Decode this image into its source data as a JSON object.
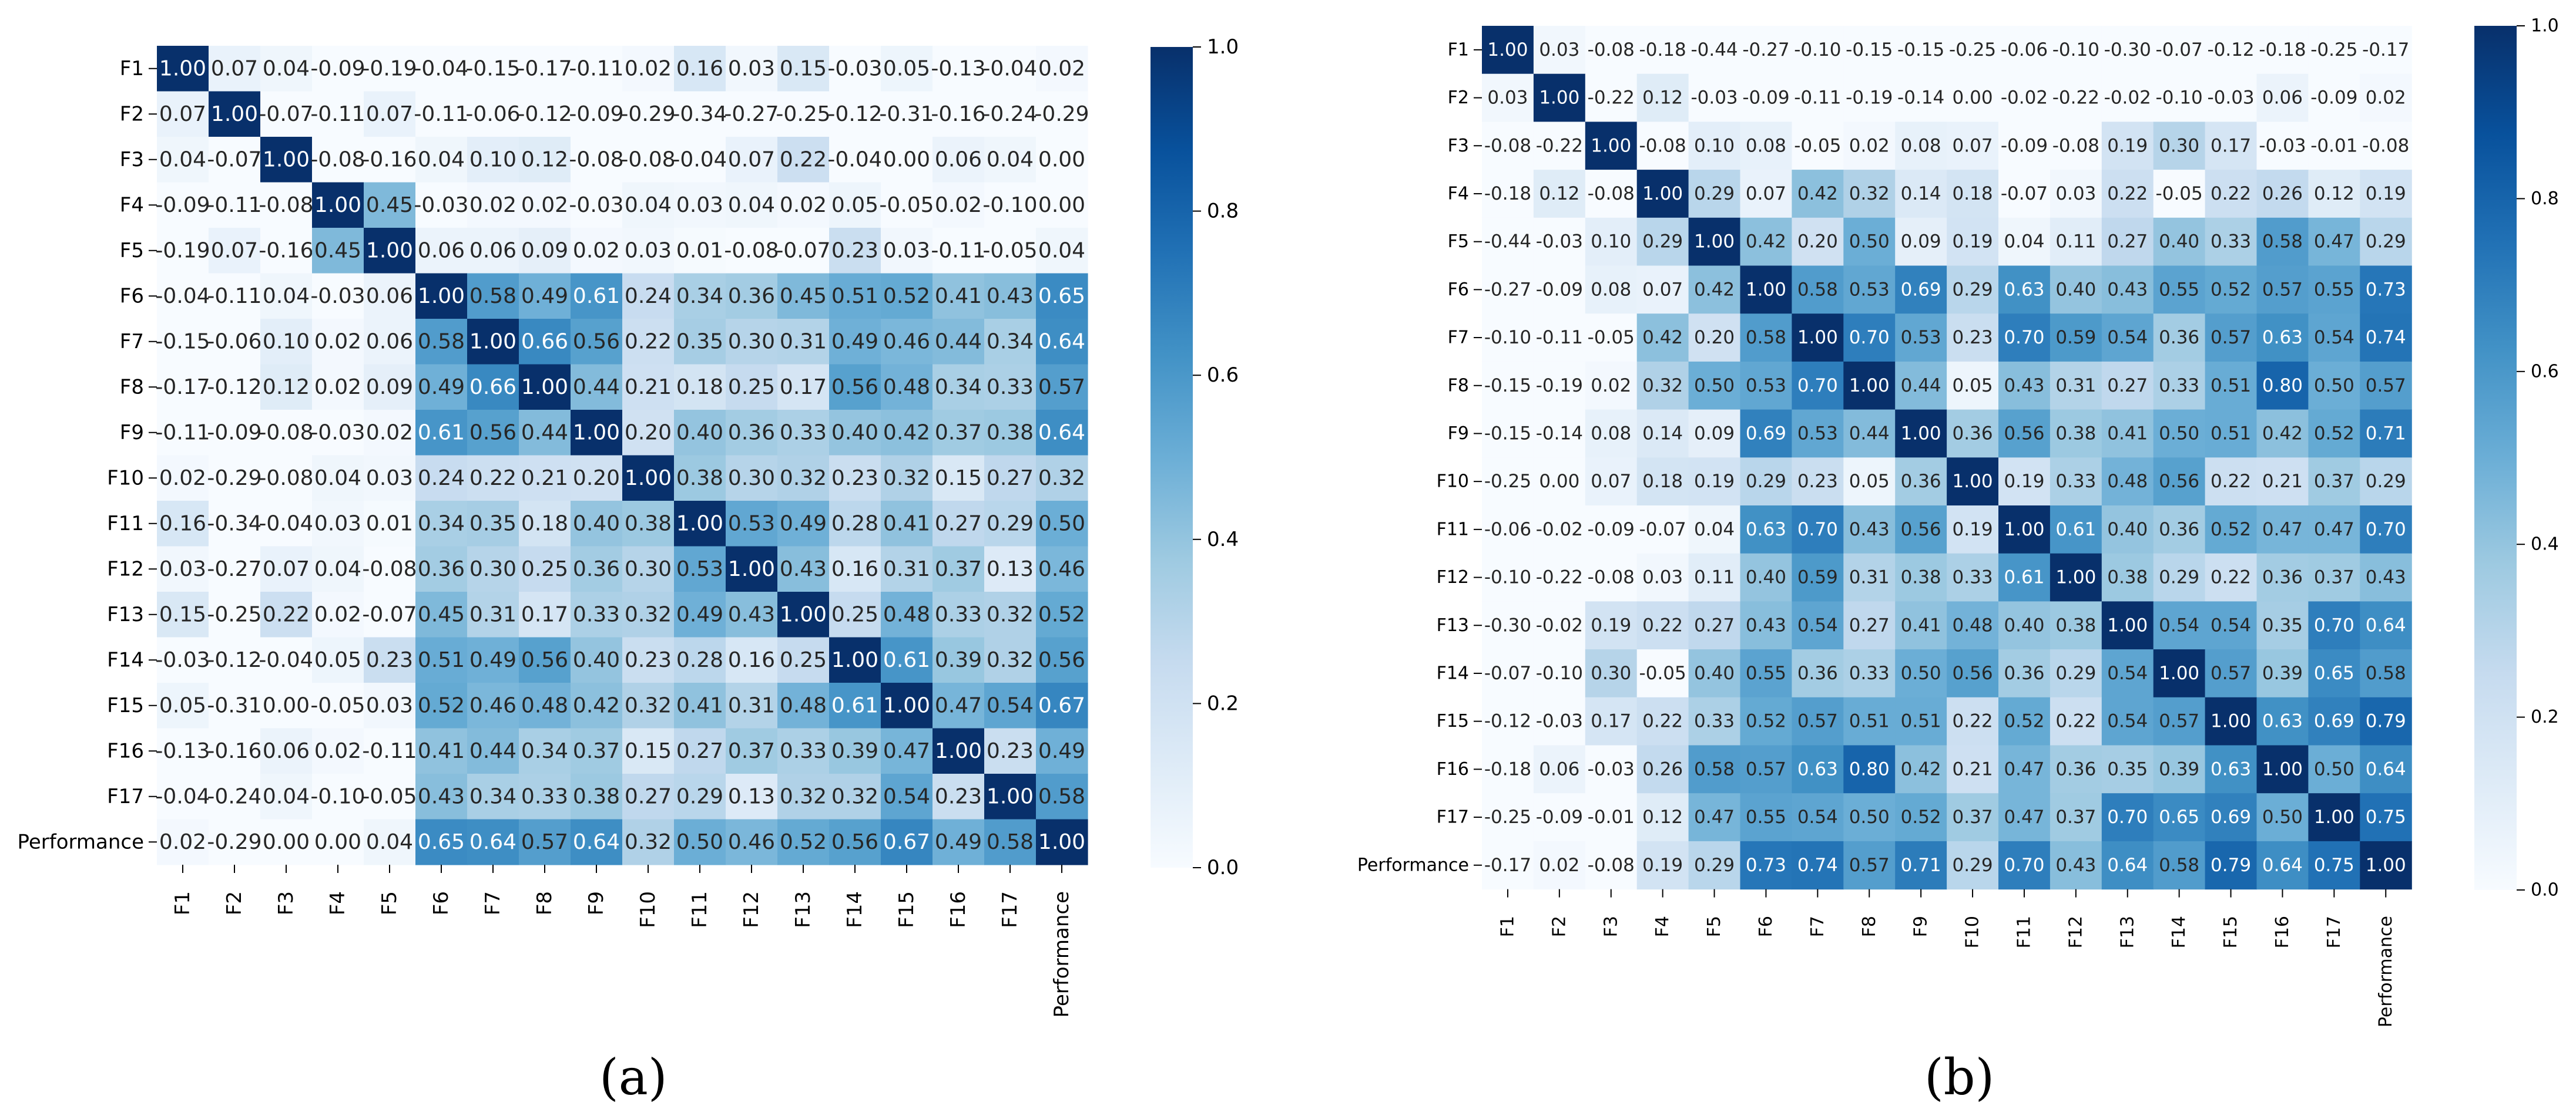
{
  "panels": [
    {
      "label": "(a)"
    },
    {
      "label": "(b)"
    }
  ],
  "chart_data": [
    {
      "type": "heatmap",
      "title": "",
      "labels": [
        "F1",
        "F2",
        "F3",
        "F4",
        "F5",
        "F6",
        "F7",
        "F8",
        "F9",
        "F10",
        "F11",
        "F12",
        "F13",
        "F14",
        "F15",
        "F16",
        "F17",
        "Performance"
      ],
      "colormap": "Blues",
      "vmin": 0.0,
      "vmax": 1.0,
      "colorbar_ticks": [
        "0.0",
        "0.2",
        "0.4",
        "0.6",
        "0.8",
        "1.0"
      ],
      "matrix": [
        [
          1.0,
          0.07,
          0.04,
          -0.09,
          -0.19,
          -0.04,
          -0.15,
          -0.17,
          -0.11,
          0.02,
          0.16,
          0.03,
          0.15,
          -0.03,
          0.05,
          -0.13,
          -0.04,
          0.02
        ],
        [
          0.07,
          1.0,
          -0.07,
          -0.11,
          0.07,
          -0.11,
          -0.06,
          -0.12,
          -0.09,
          -0.29,
          -0.34,
          -0.27,
          -0.25,
          -0.12,
          -0.31,
          -0.16,
          -0.24,
          -0.29
        ],
        [
          0.04,
          -0.07,
          1.0,
          -0.08,
          -0.16,
          0.04,
          0.1,
          0.12,
          -0.08,
          -0.08,
          -0.04,
          0.07,
          0.22,
          -0.04,
          -0.0,
          0.06,
          0.04,
          -0.0
        ],
        [
          -0.09,
          -0.11,
          -0.08,
          1.0,
          0.45,
          -0.03,
          0.02,
          0.02,
          -0.03,
          0.04,
          0.03,
          0.04,
          0.02,
          0.05,
          -0.05,
          0.02,
          -0.1,
          0.0
        ],
        [
          -0.19,
          0.07,
          -0.16,
          0.45,
          1.0,
          0.06,
          0.06,
          0.09,
          0.02,
          0.03,
          0.01,
          -0.08,
          -0.07,
          0.23,
          0.03,
          -0.11,
          -0.05,
          0.04
        ],
        [
          -0.04,
          -0.11,
          0.04,
          -0.03,
          0.06,
          1.0,
          0.58,
          0.49,
          0.61,
          0.24,
          0.34,
          0.36,
          0.45,
          0.51,
          0.52,
          0.41,
          0.43,
          0.65
        ],
        [
          -0.15,
          -0.06,
          0.1,
          0.02,
          0.06,
          0.58,
          1.0,
          0.66,
          0.56,
          0.22,
          0.35,
          0.3,
          0.31,
          0.49,
          0.46,
          0.44,
          0.34,
          0.64
        ],
        [
          -0.17,
          -0.12,
          0.12,
          0.02,
          0.09,
          0.49,
          0.66,
          1.0,
          0.44,
          0.21,
          0.18,
          0.25,
          0.17,
          0.56,
          0.48,
          0.34,
          0.33,
          0.57
        ],
        [
          -0.11,
          -0.09,
          -0.08,
          -0.03,
          0.02,
          0.61,
          0.56,
          0.44,
          1.0,
          0.2,
          0.4,
          0.36,
          0.33,
          0.4,
          0.42,
          0.37,
          0.38,
          0.64
        ],
        [
          0.02,
          -0.29,
          -0.08,
          0.04,
          0.03,
          0.24,
          0.22,
          0.21,
          0.2,
          1.0,
          0.38,
          0.3,
          0.32,
          0.23,
          0.32,
          0.15,
          0.27,
          0.32
        ],
        [
          0.16,
          -0.34,
          -0.04,
          0.03,
          0.01,
          0.34,
          0.35,
          0.18,
          0.4,
          0.38,
          1.0,
          0.53,
          0.49,
          0.28,
          0.41,
          0.27,
          0.29,
          0.5
        ],
        [
          0.03,
          -0.27,
          0.07,
          0.04,
          -0.08,
          0.36,
          0.3,
          0.25,
          0.36,
          0.3,
          0.53,
          1.0,
          0.43,
          0.16,
          0.31,
          0.37,
          0.13,
          0.46
        ],
        [
          0.15,
          -0.25,
          0.22,
          0.02,
          -0.07,
          0.45,
          0.31,
          0.17,
          0.33,
          0.32,
          0.49,
          0.43,
          1.0,
          0.25,
          0.48,
          0.33,
          0.32,
          0.52
        ],
        [
          -0.03,
          -0.12,
          -0.04,
          0.05,
          0.23,
          0.51,
          0.49,
          0.56,
          0.4,
          0.23,
          0.28,
          0.16,
          0.25,
          1.0,
          0.61,
          0.39,
          0.32,
          0.56
        ],
        [
          0.05,
          -0.31,
          -0.0,
          -0.05,
          0.03,
          0.52,
          0.46,
          0.48,
          0.42,
          0.32,
          0.41,
          0.31,
          0.48,
          0.61,
          1.0,
          0.47,
          0.54,
          0.67
        ],
        [
          -0.13,
          -0.16,
          0.06,
          0.02,
          -0.11,
          0.41,
          0.44,
          0.34,
          0.37,
          0.15,
          0.27,
          0.37,
          0.33,
          0.39,
          0.47,
          1.0,
          0.23,
          0.49
        ],
        [
          -0.04,
          -0.24,
          0.04,
          -0.1,
          -0.05,
          0.43,
          0.34,
          0.33,
          0.38,
          0.27,
          0.29,
          0.13,
          0.32,
          0.32,
          0.54,
          0.23,
          1.0,
          0.58
        ],
        [
          0.02,
          -0.29,
          -0.0,
          0.0,
          0.04,
          0.65,
          0.64,
          0.57,
          0.64,
          0.32,
          0.5,
          0.46,
          0.52,
          0.56,
          0.67,
          0.49,
          0.58,
          1.0
        ]
      ]
    },
    {
      "type": "heatmap",
      "title": "",
      "labels": [
        "F1",
        "F2",
        "F3",
        "F4",
        "F5",
        "F6",
        "F7",
        "F8",
        "F9",
        "F10",
        "F11",
        "F12",
        "F13",
        "F14",
        "F15",
        "F16",
        "F17",
        "Performance"
      ],
      "colormap": "Blues",
      "vmin": 0.0,
      "vmax": 1.0,
      "colorbar_ticks": [
        "0.0",
        "0.2",
        "0.4",
        "0.6",
        "0.8",
        "1.0"
      ],
      "matrix": [
        [
          1.0,
          0.03,
          -0.08,
          -0.18,
          -0.44,
          -0.27,
          -0.1,
          -0.15,
          -0.15,
          -0.25,
          -0.06,
          -0.1,
          -0.3,
          -0.07,
          -0.12,
          -0.18,
          -0.25,
          -0.17
        ],
        [
          0.03,
          1.0,
          -0.22,
          0.12,
          -0.03,
          -0.09,
          -0.11,
          -0.19,
          -0.14,
          -0.0,
          -0.02,
          -0.22,
          -0.02,
          -0.1,
          -0.03,
          0.06,
          -0.09,
          0.02
        ],
        [
          -0.08,
          -0.22,
          1.0,
          -0.08,
          0.1,
          0.08,
          -0.05,
          0.02,
          0.08,
          0.07,
          -0.09,
          -0.08,
          0.19,
          0.3,
          0.17,
          -0.03,
          -0.01,
          -0.08
        ],
        [
          -0.18,
          0.12,
          -0.08,
          1.0,
          0.29,
          0.07,
          0.42,
          0.32,
          0.14,
          0.18,
          -0.07,
          0.03,
          0.22,
          -0.05,
          0.22,
          0.26,
          0.12,
          0.19
        ],
        [
          -0.44,
          -0.03,
          0.1,
          0.29,
          1.0,
          0.42,
          0.2,
          0.5,
          0.09,
          0.19,
          0.04,
          0.11,
          0.27,
          0.4,
          0.33,
          0.58,
          0.47,
          0.29
        ],
        [
          -0.27,
          -0.09,
          0.08,
          0.07,
          0.42,
          1.0,
          0.58,
          0.53,
          0.69,
          0.29,
          0.63,
          0.4,
          0.43,
          0.55,
          0.52,
          0.57,
          0.55,
          0.73
        ],
        [
          -0.1,
          -0.11,
          -0.05,
          0.42,
          0.2,
          0.58,
          1.0,
          0.7,
          0.53,
          0.23,
          0.7,
          0.59,
          0.54,
          0.36,
          0.57,
          0.63,
          0.54,
          0.74
        ],
        [
          -0.15,
          -0.19,
          0.02,
          0.32,
          0.5,
          0.53,
          0.7,
          1.0,
          0.44,
          0.05,
          0.43,
          0.31,
          0.27,
          0.33,
          0.51,
          0.8,
          0.5,
          0.57
        ],
        [
          -0.15,
          -0.14,
          0.08,
          0.14,
          0.09,
          0.69,
          0.53,
          0.44,
          1.0,
          0.36,
          0.56,
          0.38,
          0.41,
          0.5,
          0.51,
          0.42,
          0.52,
          0.71
        ],
        [
          -0.25,
          -0.0,
          0.07,
          0.18,
          0.19,
          0.29,
          0.23,
          0.05,
          0.36,
          1.0,
          0.19,
          0.33,
          0.48,
          0.56,
          0.22,
          0.21,
          0.37,
          0.29
        ],
        [
          -0.06,
          -0.02,
          -0.09,
          -0.07,
          0.04,
          0.63,
          0.7,
          0.43,
          0.56,
          0.19,
          1.0,
          0.61,
          0.4,
          0.36,
          0.52,
          0.47,
          0.47,
          0.7
        ],
        [
          -0.1,
          -0.22,
          -0.08,
          0.03,
          0.11,
          0.4,
          0.59,
          0.31,
          0.38,
          0.33,
          0.61,
          1.0,
          0.38,
          0.29,
          0.22,
          0.36,
          0.37,
          0.43
        ],
        [
          -0.3,
          -0.02,
          0.19,
          0.22,
          0.27,
          0.43,
          0.54,
          0.27,
          0.41,
          0.48,
          0.4,
          0.38,
          1.0,
          0.54,
          0.54,
          0.35,
          0.7,
          0.64
        ],
        [
          -0.07,
          -0.1,
          0.3,
          -0.05,
          0.4,
          0.55,
          0.36,
          0.33,
          0.5,
          0.56,
          0.36,
          0.29,
          0.54,
          1.0,
          0.57,
          0.39,
          0.65,
          0.58
        ],
        [
          -0.12,
          -0.03,
          0.17,
          0.22,
          0.33,
          0.52,
          0.57,
          0.51,
          0.51,
          0.22,
          0.52,
          0.22,
          0.54,
          0.57,
          1.0,
          0.63,
          0.69,
          0.79
        ],
        [
          -0.18,
          0.06,
          -0.03,
          0.26,
          0.58,
          0.57,
          0.63,
          0.8,
          0.42,
          0.21,
          0.47,
          0.36,
          0.35,
          0.39,
          0.63,
          1.0,
          0.5,
          0.64
        ],
        [
          -0.25,
          -0.09,
          -0.01,
          0.12,
          0.47,
          0.55,
          0.54,
          0.5,
          0.52,
          0.37,
          0.47,
          0.37,
          0.7,
          0.65,
          0.69,
          0.5,
          1.0,
          0.75
        ],
        [
          -0.17,
          0.02,
          -0.08,
          0.19,
          0.29,
          0.73,
          0.74,
          0.57,
          0.71,
          0.29,
          0.7,
          0.43,
          0.64,
          0.58,
          0.79,
          0.64,
          0.75,
          1.0
        ]
      ]
    }
  ]
}
